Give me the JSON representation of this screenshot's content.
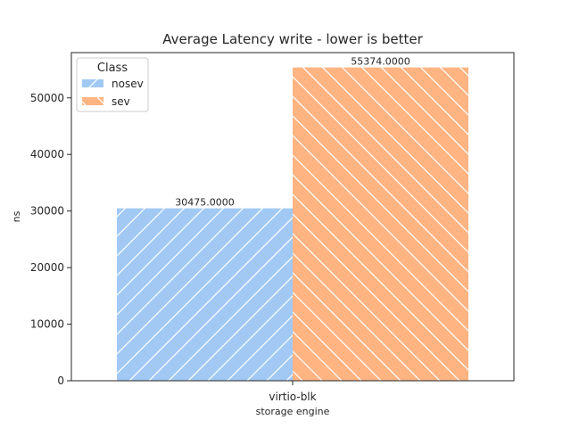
{
  "chart_data": {
    "type": "bar",
    "title": "Average Latency write - lower is better",
    "xlabel": "storage engine",
    "ylabel": "ns",
    "categories": [
      "virtio-blk"
    ],
    "series": [
      {
        "name": "nosev",
        "values": [
          30475.0
        ],
        "color": "#a1c9f4",
        "hatch": "/",
        "value_label": "30475.0000"
      },
      {
        "name": "sev",
        "values": [
          55374.0
        ],
        "color": "#ffb482",
        "hatch": "\\",
        "value_label": "55374.0000"
      }
    ],
    "ylim": [
      0,
      58000
    ],
    "yticks": [
      0,
      10000,
      20000,
      30000,
      40000,
      50000
    ],
    "grid": false,
    "legend": {
      "title": "Class",
      "placement": "top-left"
    }
  }
}
